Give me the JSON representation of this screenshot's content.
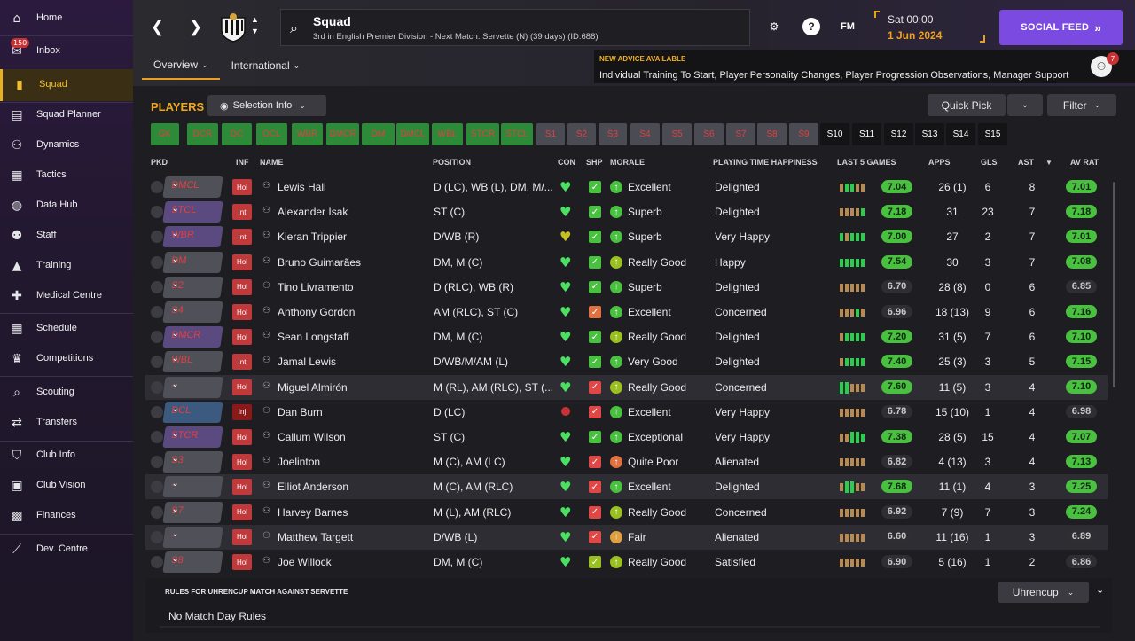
{
  "sidebar": {
    "items": [
      {
        "label": "Home",
        "icon": "home-icon",
        "glyph": "⌂"
      },
      {
        "label": "Inbox",
        "icon": "inbox-icon",
        "glyph": "✉",
        "badge": "150"
      },
      {
        "label": "Squad",
        "icon": "squad-icon",
        "glyph": "▮",
        "active": true
      },
      {
        "label": "Squad Planner",
        "icon": "clipboard-icon",
        "glyph": "▤"
      },
      {
        "label": "Dynamics",
        "icon": "dynamics-icon",
        "glyph": "⚇"
      },
      {
        "label": "Tactics",
        "icon": "tactics-icon",
        "glyph": "▦"
      },
      {
        "label": "Data Hub",
        "icon": "data-hub-icon",
        "glyph": "◍"
      },
      {
        "label": "Staff",
        "icon": "staff-icon",
        "glyph": "⚉"
      },
      {
        "label": "Training",
        "icon": "training-icon",
        "glyph": "▲"
      },
      {
        "label": "Medical Centre",
        "icon": "medical-icon",
        "glyph": "✚"
      },
      {
        "label": "Schedule",
        "icon": "calendar-icon",
        "glyph": "▦"
      },
      {
        "label": "Competitions",
        "icon": "trophy-icon",
        "glyph": "♛"
      },
      {
        "label": "Scouting",
        "icon": "search-icon",
        "glyph": "⌕"
      },
      {
        "label": "Transfers",
        "icon": "transfers-icon",
        "glyph": "⇄"
      },
      {
        "label": "Club Info",
        "icon": "shield-icon",
        "glyph": "⛉"
      },
      {
        "label": "Club Vision",
        "icon": "briefcase-icon",
        "glyph": "▣"
      },
      {
        "label": "Finances",
        "icon": "finances-icon",
        "glyph": "▩"
      },
      {
        "label": "Dev. Centre",
        "icon": "dev-centre-icon",
        "glyph": "⟋"
      }
    ]
  },
  "header": {
    "title": "Squad",
    "subtitle": "3rd in English Premier Division - Next Match: Servette (N) (39 days) (ID:688)",
    "fm_label": "FM",
    "help_label": "?",
    "date_line1": "Sat 00:00",
    "date_line2": "1 Jun 2024",
    "social_label": "SOCIAL FEED",
    "tabs": [
      "Overview",
      "International"
    ],
    "advice_title": "NEW ADVICE AVAILABLE",
    "advice_text": "Individual Training To Start, Player Personality Changes, Player Progression Observations, Manager Support",
    "notif_count": "7"
  },
  "players_panel": {
    "title": "PLAYERS",
    "selection_info": "Selection Info",
    "quick_pick": "Quick Pick",
    "filter": "Filter",
    "positions": [
      "GK",
      "DCR",
      "DC",
      "DCL",
      "WBR",
      "DMCR",
      "DM",
      "DMCL",
      "WBL",
      "STCR",
      "STCL"
    ],
    "subs_grey": [
      "S1",
      "S2",
      "S3",
      "S4",
      "S5",
      "S6",
      "S7",
      "S8",
      "S9"
    ],
    "subs_black": [
      "S10",
      "S11",
      "S12",
      "S13",
      "S14",
      "S15"
    ]
  },
  "table": {
    "headers": {
      "pkd": "PKD",
      "inf": "INF",
      "name": "NAME",
      "position": "POSITION",
      "con": "CON",
      "shp": "SHP",
      "morale": "MORALE",
      "happiness": "PLAYING TIME HAPPINESS",
      "last5": "LAST 5 GAMES",
      "apps": "APPS",
      "gls": "GLS",
      "ast": "AST",
      "avrat": "AV RAT"
    },
    "rows": [
      {
        "role": "DMCL",
        "inf": "Hol",
        "name": "Lewis Hall",
        "position": "D (LC), WB (L), DM, M/...",
        "morale": "Excellent",
        "happiness": "Delighted",
        "last5": "7.04",
        "apps": "26 (1)",
        "gls": "6",
        "ast": "8",
        "avrat": "7.01"
      },
      {
        "role": "STCL",
        "inf": "Int",
        "name": "Alexander Isak",
        "position": "ST (C)",
        "morale": "Superb",
        "happiness": "Delighted",
        "last5": "7.18",
        "apps": "31",
        "gls": "23",
        "ast": "7",
        "avrat": "7.18"
      },
      {
        "role": "WBR",
        "inf": "Int",
        "name": "Kieran Trippier",
        "position": "D/WB (R)",
        "morale": "Superb",
        "happiness": "Very Happy",
        "last5": "7.00",
        "apps": "27",
        "gls": "2",
        "ast": "7",
        "avrat": "7.01"
      },
      {
        "role": "DM",
        "inf": "Hol",
        "name": "Bruno Guimarães",
        "position": "DM, M (C)",
        "morale": "Really Good",
        "happiness": "Happy",
        "last5": "7.54",
        "apps": "30",
        "gls": "3",
        "ast": "7",
        "avrat": "7.08"
      },
      {
        "role": "S2",
        "inf": "Hol",
        "name": "Tino Livramento",
        "position": "D (RLC), WB (R)",
        "morale": "Superb",
        "happiness": "Delighted",
        "last5": "6.70",
        "apps": "28 (8)",
        "gls": "0",
        "ast": "6",
        "avrat": "6.85"
      },
      {
        "role": "S4",
        "inf": "Hol",
        "name": "Anthony Gordon",
        "position": "AM (RLC), ST (C)",
        "morale": "Excellent",
        "happiness": "Concerned",
        "last5": "6.96",
        "apps": "18 (13)",
        "gls": "9",
        "ast": "6",
        "avrat": "7.16"
      },
      {
        "role": "DMCR",
        "inf": "Hol",
        "name": "Sean Longstaff",
        "position": "DM, M (C)",
        "morale": "Really Good",
        "happiness": "Delighted",
        "last5": "7.20",
        "apps": "31 (5)",
        "gls": "7",
        "ast": "6",
        "avrat": "7.10"
      },
      {
        "role": "WBL",
        "inf": "Int",
        "name": "Jamal Lewis",
        "position": "D/WB/M/AM (L)",
        "morale": "Very Good",
        "happiness": "Delighted",
        "last5": "7.40",
        "apps": "25 (3)",
        "gls": "3",
        "ast": "5",
        "avrat": "7.15"
      },
      {
        "role": "-",
        "inf": "Hol",
        "name": "Miguel Almirón",
        "position": "M (RL), AM (RLC), ST (...",
        "morale": "Really Good",
        "happiness": "Concerned",
        "last5": "7.60",
        "apps": "11 (5)",
        "gls": "3",
        "ast": "4",
        "avrat": "7.10"
      },
      {
        "role": "DCL",
        "inf": "Inj",
        "name": "Dan Burn",
        "position": "D (LC)",
        "morale": "Excellent",
        "happiness": "Very Happy",
        "last5": "6.78",
        "apps": "15 (10)",
        "gls": "1",
        "ast": "4",
        "avrat": "6.98"
      },
      {
        "role": "STCR",
        "inf": "Hol",
        "name": "Callum Wilson",
        "position": "ST (C)",
        "morale": "Exceptional",
        "happiness": "Very Happy",
        "last5": "7.38",
        "apps": "28 (5)",
        "gls": "15",
        "ast": "4",
        "avrat": "7.07"
      },
      {
        "role": "S3",
        "inf": "Hol",
        "name": "Joelinton",
        "position": "M (C), AM (LC)",
        "morale": "Quite Poor",
        "happiness": "Alienated",
        "last5": "6.82",
        "apps": "4 (13)",
        "gls": "3",
        "ast": "4",
        "avrat": "7.13"
      },
      {
        "role": "-",
        "inf": "Hol",
        "name": "Elliot Anderson",
        "position": "M (C), AM (RLC)",
        "morale": "Excellent",
        "happiness": "Delighted",
        "last5": "7.68",
        "apps": "11 (1)",
        "gls": "4",
        "ast": "3",
        "avrat": "7.25"
      },
      {
        "role": "S7",
        "inf": "Hol",
        "name": "Harvey Barnes",
        "position": "M (L), AM (RLC)",
        "morale": "Really Good",
        "happiness": "Concerned",
        "last5": "6.92",
        "apps": "7 (9)",
        "gls": "7",
        "ast": "3",
        "avrat": "7.24"
      },
      {
        "role": "-",
        "inf": "Hol",
        "name": "Matthew Targett",
        "position": "D/WB (L)",
        "morale": "Fair",
        "happiness": "Alienated",
        "last5": "6.60",
        "apps": "11 (16)",
        "gls": "1",
        "ast": "3",
        "avrat": "6.89"
      },
      {
        "role": "S8",
        "inf": "Hol",
        "name": "Joe Willock",
        "position": "DM, M (C)",
        "morale": "Really Good",
        "happiness": "Satisfied",
        "last5": "6.90",
        "apps": "5 (16)",
        "gls": "1",
        "ast": "2",
        "avrat": "6.86"
      }
    ]
  },
  "rules": {
    "title": "RULES FOR UHRENCUP MATCH AGAINST SERVETTE",
    "text": "No Match Day Rules",
    "competition": "Uhrencup"
  }
}
